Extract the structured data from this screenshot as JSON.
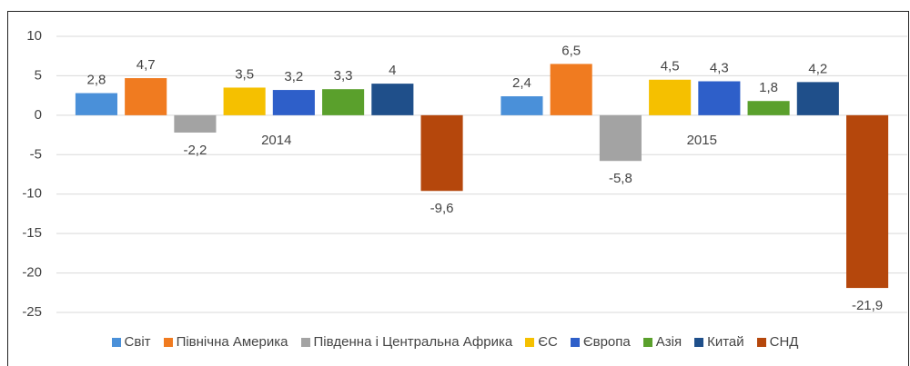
{
  "chart_data": {
    "type": "bar",
    "categories": [
      "2014",
      "2015"
    ],
    "series": [
      {
        "name": "Світ",
        "color": "#4a90d9",
        "values": [
          2.8,
          2.4
        ],
        "value_labels": [
          "2,8",
          "2,4"
        ]
      },
      {
        "name": "Північна Америка",
        "color": "#f07b20",
        "values": [
          4.7,
          6.5
        ],
        "value_labels": [
          "4,7",
          "6,5"
        ]
      },
      {
        "name": "Південна і Центральна Африка",
        "color": "#a3a3a3",
        "values": [
          -2.2,
          -5.8
        ],
        "value_labels": [
          "-2,2",
          "-5,8"
        ]
      },
      {
        "name": "ЄС",
        "color": "#f5c000",
        "values": [
          3.5,
          4.5
        ],
        "value_labels": [
          "3,5",
          "4,5"
        ]
      },
      {
        "name": "Європа",
        "color": "#2e5fc9",
        "values": [
          3.2,
          4.3
        ],
        "value_labels": [
          "3,2",
          "4,3"
        ]
      },
      {
        "name": "Азія",
        "color": "#5aa02c",
        "values": [
          3.3,
          1.8
        ],
        "value_labels": [
          "3,3",
          "1,8"
        ]
      },
      {
        "name": "Китай",
        "color": "#1f4f8a",
        "values": [
          4,
          4.2
        ],
        "value_labels": [
          "4",
          "4,2"
        ]
      },
      {
        "name": "СНД",
        "color": "#b5470c",
        "values": [
          -9.6,
          -21.9
        ],
        "value_labels": [
          "-9,6",
          "-21,9"
        ]
      }
    ],
    "ylim": [
      -25,
      10
    ],
    "yticks": [
      -25,
      -20,
      -15,
      -10,
      -5,
      0,
      5,
      10
    ],
    "grid": true,
    "legend": "bottom"
  }
}
